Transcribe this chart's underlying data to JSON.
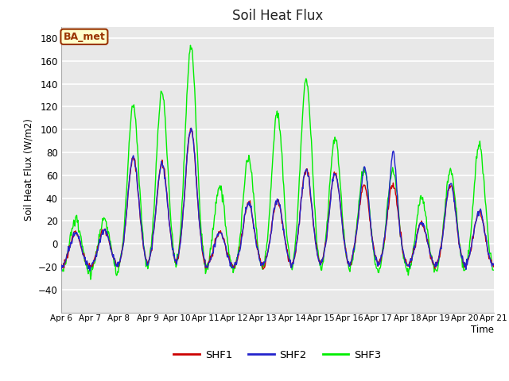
{
  "title": "Soil Heat Flux",
  "ylabel": "Soil Heat Flux (W/m2)",
  "xlabel": "Time",
  "ylim": [
    -60,
    190
  ],
  "yticks": [
    -40,
    -20,
    0,
    20,
    40,
    60,
    80,
    100,
    120,
    140,
    160,
    180
  ],
  "xlim": [
    0,
    360
  ],
  "xtick_labels": [
    "Apr 6",
    "Apr 7",
    "Apr 8",
    "Apr 9",
    "Apr 10",
    "Apr 11",
    "Apr 12",
    "Apr 13",
    "Apr 14",
    "Apr 15",
    "Apr 16",
    "Apr 17",
    "Apr 18",
    "Apr 19",
    "Apr 20",
    "Apr 21"
  ],
  "xtick_positions": [
    0,
    24,
    48,
    72,
    96,
    120,
    144,
    168,
    192,
    216,
    240,
    264,
    288,
    312,
    336,
    360
  ],
  "bg_color": "#e8e8e8",
  "grid_color": "white",
  "shf1_color": "#cc0000",
  "shf2_color": "#2222cc",
  "shf3_color": "#00ee00",
  "legend_label1": "SHF1",
  "legend_label2": "SHF2",
  "legend_label3": "SHF3",
  "annotation_text": "BA_met",
  "annotation_bg": "#ffffcc",
  "annotation_border": "#993300",
  "linewidth": 1.0
}
